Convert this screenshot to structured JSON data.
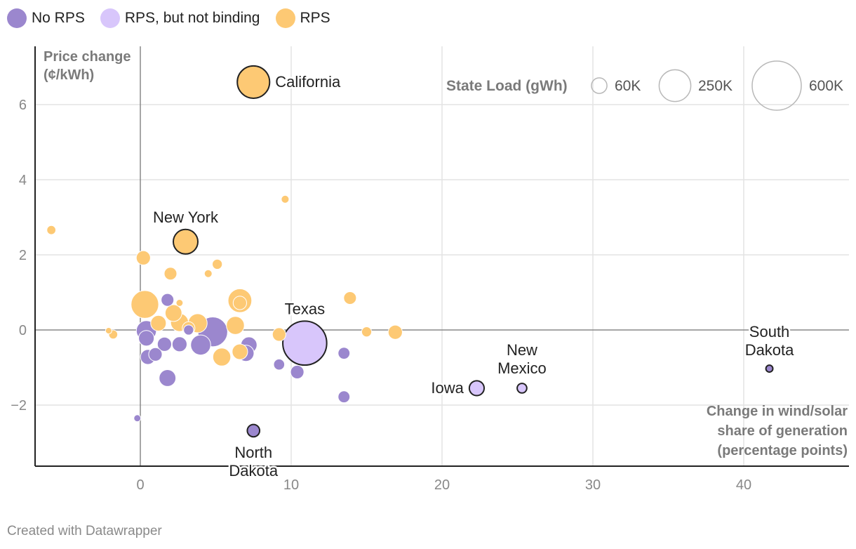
{
  "legend": {
    "items": [
      {
        "label": "No RPS",
        "color": "#9b87ce"
      },
      {
        "label": "RPS, but not binding",
        "color": "#d8c6fb"
      },
      {
        "label": "RPS",
        "color": "#fdc974"
      }
    ]
  },
  "footer": "Created with Datawrapper",
  "chart_data": {
    "type": "scatter",
    "ylabel": "Price change (¢/kWh)",
    "ylabel_lines": [
      "Price change",
      "(¢/kWh)"
    ],
    "xlabel": "Change in wind/solar share of generation (percentage points)",
    "xlabel_lines": [
      "Change in wind/solar",
      "share of generation",
      "(percentage points)"
    ],
    "xlim": [
      -7,
      47
    ],
    "ylim": [
      -3.6,
      7.5
    ],
    "x_ticks": [
      0,
      10,
      20,
      30,
      40
    ],
    "y_ticks": [
      -2,
      0,
      2,
      4,
      6
    ],
    "y_tick_labels": [
      "−2",
      "0",
      "2",
      "4",
      "6"
    ],
    "size_legend": {
      "title": "State Load (gWh)",
      "items": [
        {
          "label": "60K",
          "load": 60000
        },
        {
          "label": "250K",
          "load": 250000
        },
        {
          "label": "600K",
          "load": 600000
        }
      ]
    },
    "categories": {
      "No RPS": "#9b87ce",
      "RPS, but not binding": "#d8c6fb",
      "RPS": "#fdc974"
    },
    "points": [
      {
        "label": "California",
        "x": 7.5,
        "y": 6.6,
        "load": 260000,
        "category": "RPS",
        "highlight": true,
        "label_pos": "right"
      },
      {
        "label": "New York",
        "x": 3.0,
        "y": 2.35,
        "load": 150000,
        "category": "RPS",
        "highlight": true,
        "label_pos": "above"
      },
      {
        "label": "Texas",
        "x": 10.9,
        "y": -0.35,
        "load": 480000,
        "category": "RPS, but not binding",
        "highlight": true,
        "label_pos": "above"
      },
      {
        "label": "Iowa",
        "x": 22.3,
        "y": -1.55,
        "load": 55000,
        "category": "RPS, but not binding",
        "highlight": true,
        "label_pos": "left"
      },
      {
        "label": "New Mexico",
        "x": 25.3,
        "y": -1.55,
        "load": 23000,
        "category": "RPS, but not binding",
        "highlight": true,
        "label_pos": "above2"
      },
      {
        "label": "South Dakota",
        "x": 41.7,
        "y": -1.03,
        "load": 12000,
        "category": "No RPS",
        "highlight": true,
        "label_pos": "above2"
      },
      {
        "label": "North Dakota",
        "x": 7.5,
        "y": -2.68,
        "load": 38000,
        "category": "No RPS",
        "highlight": true,
        "label_pos": "below2"
      },
      {
        "label": "",
        "x": 0.3,
        "y": 0.68,
        "load": 190000,
        "category": "RPS"
      },
      {
        "label": "",
        "x": 0.2,
        "y": 1.92,
        "load": 50000,
        "category": "RPS"
      },
      {
        "label": "",
        "x": 2.0,
        "y": 1.5,
        "load": 40000,
        "category": "RPS"
      },
      {
        "label": "",
        "x": 4.5,
        "y": 1.5,
        "load": 15000,
        "category": "RPS"
      },
      {
        "label": "",
        "x": 5.1,
        "y": 1.75,
        "load": 25000,
        "category": "RPS"
      },
      {
        "label": "",
        "x": 9.6,
        "y": 3.48,
        "load": 15000,
        "category": "RPS"
      },
      {
        "label": "",
        "x": -5.9,
        "y": 2.66,
        "load": 20000,
        "category": "RPS"
      },
      {
        "label": "",
        "x": -2.1,
        "y": -0.02,
        "load": 10000,
        "category": "RPS"
      },
      {
        "label": "",
        "x": -1.8,
        "y": -0.12,
        "load": 20000,
        "category": "RPS"
      },
      {
        "label": "",
        "x": 6.6,
        "y": 0.78,
        "load": 140000,
        "category": "RPS"
      },
      {
        "label": "",
        "x": 6.6,
        "y": 0.72,
        "load": 45000,
        "category": "RPS"
      },
      {
        "label": "",
        "x": 2.6,
        "y": 0.72,
        "load": 12000,
        "category": "RPS"
      },
      {
        "label": "",
        "x": 2.2,
        "y": 0.45,
        "load": 70000,
        "category": "RPS"
      },
      {
        "label": "",
        "x": 1.2,
        "y": 0.18,
        "load": 60000,
        "category": "RPS"
      },
      {
        "label": "",
        "x": 2.6,
        "y": 0.2,
        "load": 80000,
        "category": "RPS"
      },
      {
        "label": "",
        "x": 3.8,
        "y": 0.18,
        "load": 90000,
        "category": "RPS"
      },
      {
        "label": "",
        "x": 3.2,
        "y": 0.05,
        "load": 40000,
        "category": "RPS"
      },
      {
        "label": "",
        "x": 6.3,
        "y": 0.12,
        "load": 80000,
        "category": "RPS"
      },
      {
        "label": "",
        "x": 5.4,
        "y": -0.72,
        "load": 80000,
        "category": "RPS"
      },
      {
        "label": "",
        "x": 6.6,
        "y": -0.58,
        "load": 60000,
        "category": "RPS"
      },
      {
        "label": "",
        "x": 9.2,
        "y": -0.12,
        "load": 45000,
        "category": "RPS"
      },
      {
        "label": "",
        "x": 13.9,
        "y": 0.85,
        "load": 40000,
        "category": "RPS"
      },
      {
        "label": "",
        "x": 15.0,
        "y": -0.05,
        "load": 25000,
        "category": "RPS"
      },
      {
        "label": "",
        "x": 16.9,
        "y": -0.06,
        "load": 50000,
        "category": "RPS"
      },
      {
        "label": "",
        "x": 1.8,
        "y": 0.8,
        "load": 40000,
        "category": "No RPS"
      },
      {
        "label": "",
        "x": 0.4,
        "y": -0.02,
        "load": 100000,
        "category": "No RPS"
      },
      {
        "label": "",
        "x": 0.4,
        "y": -0.22,
        "load": 60000,
        "category": "No RPS"
      },
      {
        "label": "",
        "x": 0.5,
        "y": -0.72,
        "load": 55000,
        "category": "No RPS"
      },
      {
        "label": "",
        "x": 1.0,
        "y": -0.65,
        "load": 45000,
        "category": "No RPS"
      },
      {
        "label": "",
        "x": 1.6,
        "y": -0.38,
        "load": 50000,
        "category": "No RPS"
      },
      {
        "label": "",
        "x": 1.8,
        "y": -1.28,
        "load": 70000,
        "category": "No RPS"
      },
      {
        "label": "",
        "x": 2.6,
        "y": -0.38,
        "load": 55000,
        "category": "No RPS"
      },
      {
        "label": "",
        "x": 3.2,
        "y": 0.0,
        "load": 25000,
        "category": "No RPS"
      },
      {
        "label": "",
        "x": 4.0,
        "y": -0.4,
        "load": 100000,
        "category": "No RPS"
      },
      {
        "label": "",
        "x": 4.8,
        "y": -0.05,
        "load": 220000,
        "category": "No RPS"
      },
      {
        "label": "",
        "x": 7.2,
        "y": -0.4,
        "load": 65000,
        "category": "No RPS"
      },
      {
        "label": "",
        "x": 7.0,
        "y": -0.62,
        "load": 65000,
        "category": "No RPS"
      },
      {
        "label": "",
        "x": 9.2,
        "y": -0.92,
        "load": 30000,
        "category": "No RPS"
      },
      {
        "label": "",
        "x": 10.4,
        "y": -1.12,
        "load": 45000,
        "category": "No RPS"
      },
      {
        "label": "",
        "x": 13.5,
        "y": -0.62,
        "load": 35000,
        "category": "No RPS"
      },
      {
        "label": "",
        "x": 13.5,
        "y": -1.78,
        "load": 35000,
        "category": "No RPS"
      },
      {
        "label": "",
        "x": -0.2,
        "y": -2.35,
        "load": 12000,
        "category": "No RPS"
      }
    ]
  }
}
